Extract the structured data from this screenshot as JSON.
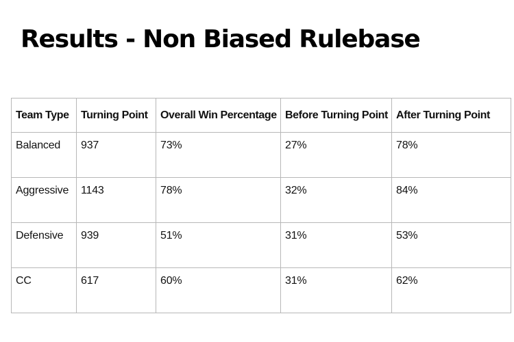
{
  "slide": {
    "title": "Results - Non Biased Rulebase"
  },
  "table": {
    "headers": [
      "Team Type",
      "Turning Point",
      "Overall Win Percentage",
      "Before Turning Point",
      "After Turning Point"
    ],
    "rows": [
      [
        "Balanced",
        "937",
        "73%",
        "27%",
        "78%"
      ],
      [
        "Aggressive",
        "1143",
        "78%",
        "32%",
        "84%"
      ],
      [
        "Defensive",
        "939",
        "51%",
        "31%",
        "53%"
      ],
      [
        "CC",
        "617",
        "60%",
        "31%",
        "62%"
      ]
    ]
  }
}
